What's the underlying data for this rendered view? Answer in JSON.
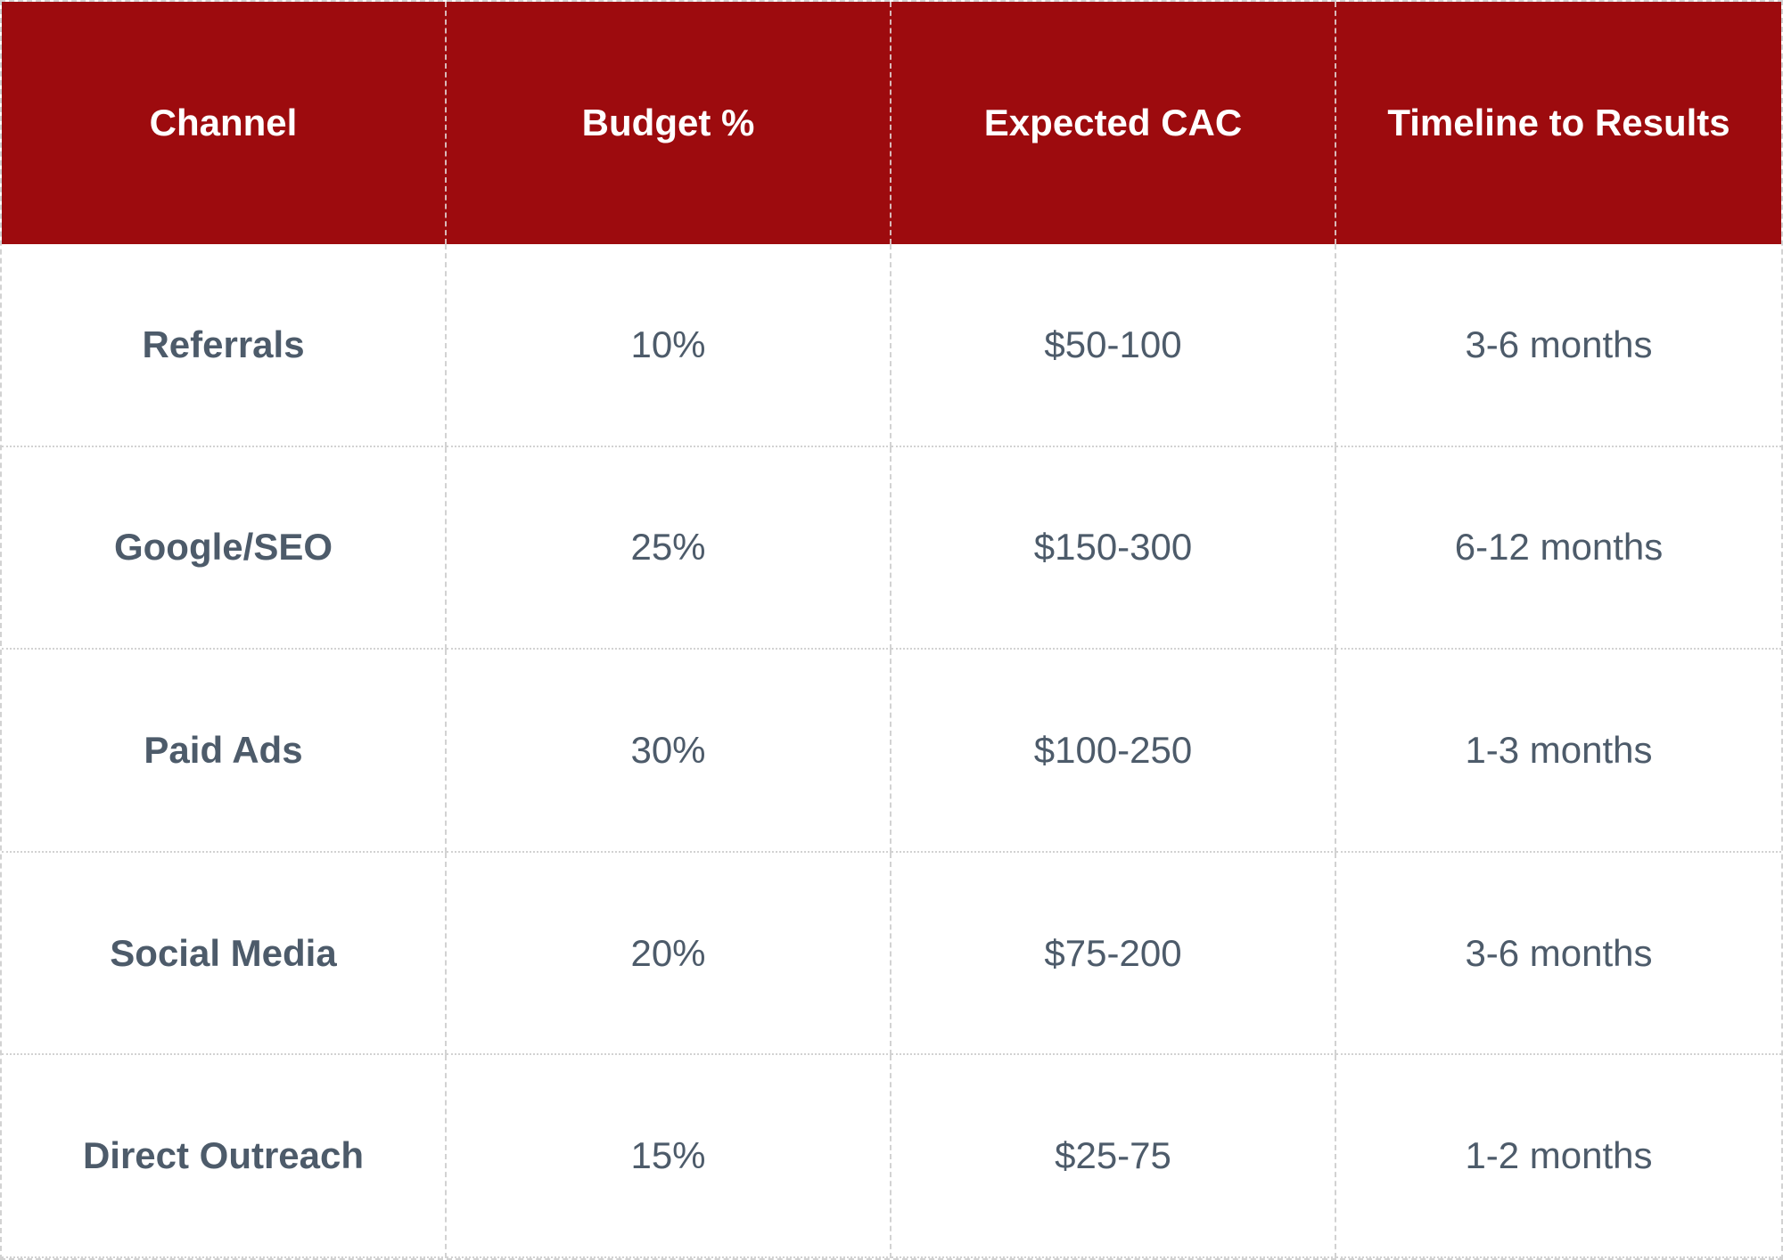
{
  "table": {
    "columns": [
      "Channel",
      "Budget %",
      "Expected CAC",
      "Timeline to Results"
    ],
    "rows": [
      [
        "Referrals",
        "10%",
        "$50-100",
        "3-6 months"
      ],
      [
        "Google/SEO",
        "25%",
        "$150-300",
        "6-12 months"
      ],
      [
        "Paid Ads",
        "30%",
        "$100-250",
        "1-3 months"
      ],
      [
        "Social Media",
        "20%",
        "$75-200",
        "3-6 months"
      ],
      [
        "Direct Outreach",
        "15%",
        "$25-75",
        "1-2 months"
      ]
    ],
    "colors": {
      "header_background": "#9d0b0e",
      "header_text": "#ffffff",
      "body_text": "#4d5b6a",
      "grid_lines": "#d2d2d2",
      "body_background": "#ffffff"
    }
  },
  "chart_data": {
    "type": "table",
    "title": "",
    "columns": [
      "Channel",
      "Budget %",
      "Expected CAC",
      "Timeline to Results"
    ],
    "categories": [
      "Referrals",
      "Google/SEO",
      "Paid Ads",
      "Social Media",
      "Direct Outreach"
    ],
    "series": [
      {
        "name": "Budget %",
        "values": [
          10,
          25,
          30,
          20,
          15
        ]
      },
      {
        "name": "Expected CAC",
        "values": [
          "$50-100",
          "$150-300",
          "$100-250",
          "$75-200",
          "$25-75"
        ]
      },
      {
        "name": "Timeline to Results",
        "values": [
          "3-6 months",
          "6-12 months",
          "1-3 months",
          "3-6 months",
          "1-2 months"
        ]
      }
    ]
  }
}
